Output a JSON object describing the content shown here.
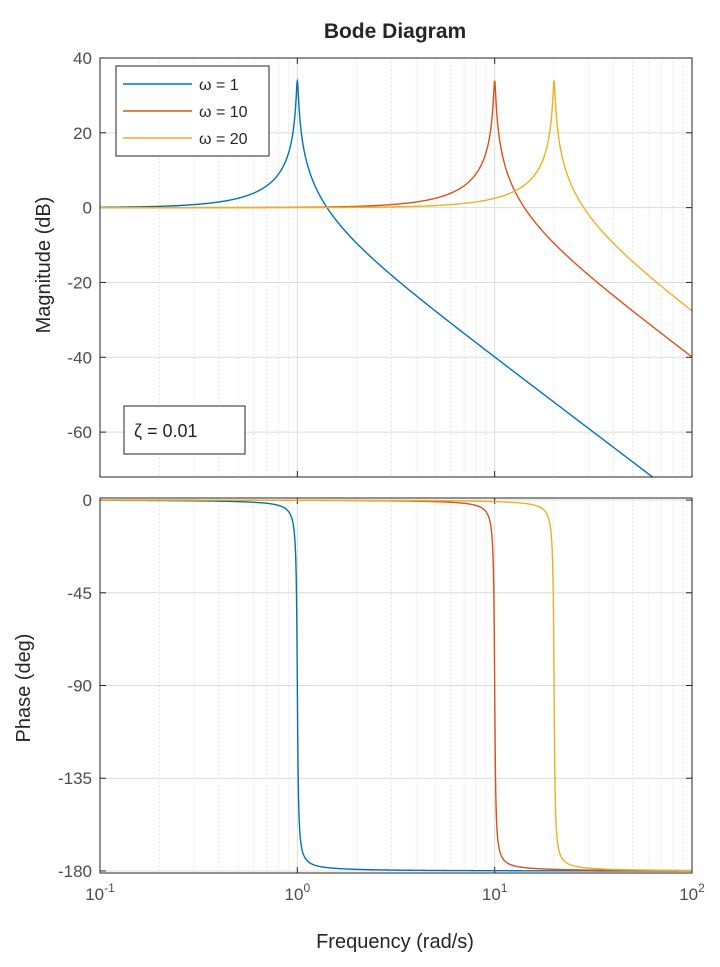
{
  "chart_data": {
    "type": "line",
    "title": "Bode Diagram",
    "xlabel": "Frequency  (rad/s)",
    "xscale": "log",
    "xlim": [
      0.1,
      100
    ],
    "x_ticks": [
      {
        "base": "10",
        "exp": "-1",
        "value": 0.1
      },
      {
        "base": "10",
        "exp": "0",
        "value": 1
      },
      {
        "base": "10",
        "exp": "1",
        "value": 10
      },
      {
        "base": "10",
        "exp": "2",
        "value": 100
      }
    ],
    "grid": true,
    "legend": {
      "placement": "top-left",
      "entries": [
        "ω = 1",
        "ω = 10",
        "ω = 20"
      ]
    },
    "annotation": "ζ = 0.01",
    "damping_ratio": 0.01,
    "series": [
      {
        "name": "ω = 1",
        "natural_frequency": 1,
        "color": "#0072bd"
      },
      {
        "name": "ω = 10",
        "natural_frequency": 10,
        "color": "#d95319"
      },
      {
        "name": "ω = 20",
        "natural_frequency": 20,
        "color": "#edb120"
      }
    ],
    "subplots": [
      {
        "quantity": "magnitude",
        "ylabel": "Magnitude (dB)",
        "ylim": [
          -72,
          40
        ],
        "y_ticks": [
          "40",
          "20",
          "0",
          "-20",
          "-40",
          "-60"
        ],
        "y_tick_values": [
          40,
          20,
          0,
          -20,
          -40,
          -60
        ]
      },
      {
        "quantity": "phase",
        "ylabel": "Phase (deg)",
        "ylim": [
          -181,
          1
        ],
        "y_ticks": [
          "0",
          "-45",
          "-90",
          "-135",
          "-180"
        ],
        "y_tick_values": [
          0,
          -45,
          -90,
          -135,
          -180
        ]
      }
    ]
  }
}
